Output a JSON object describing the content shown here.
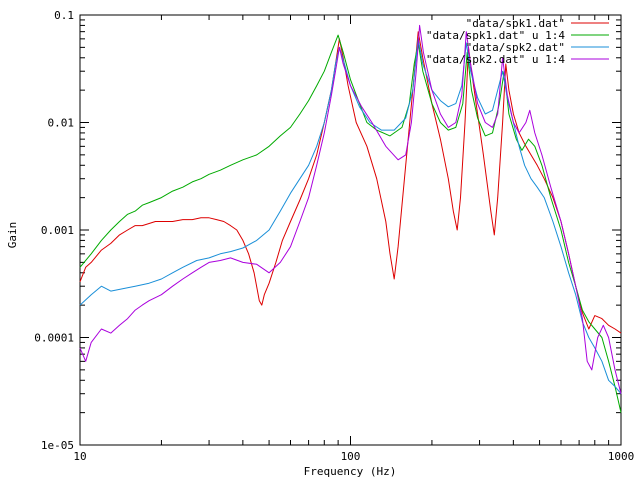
{
  "chart_data": {
    "type": "line",
    "title": "",
    "xlabel": "Frequency (Hz)",
    "ylabel": "Gain",
    "x_scale": "log",
    "y_scale": "log",
    "xlim": [
      10,
      1000
    ],
    "ylim": [
      1e-05,
      0.1
    ],
    "x_ticks": [
      {
        "value": 10,
        "label": "10"
      },
      {
        "value": 100,
        "label": "100"
      },
      {
        "value": 1000,
        "label": "1000"
      }
    ],
    "y_ticks": [
      {
        "value": 0.1,
        "label": "0.1"
      },
      {
        "value": 0.01,
        "label": "0.01"
      },
      {
        "value": 0.001,
        "label": "0.001"
      },
      {
        "value": 0.0001,
        "label": "0.0001"
      },
      {
        "value": 1e-05,
        "label": "1e-05"
      }
    ],
    "grid": false,
    "legend_position": "top-right",
    "series": [
      {
        "name": "\"data/spk1.dat\"",
        "color": "#dd0000",
        "points": [
          [
            10,
            0.00033
          ],
          [
            10.5,
            0.00045
          ],
          [
            11,
            0.0005
          ],
          [
            12,
            0.00065
          ],
          [
            13,
            0.00075
          ],
          [
            14,
            0.0009
          ],
          [
            15,
            0.001
          ],
          [
            16,
            0.0011
          ],
          [
            17,
            0.0011
          ],
          [
            18,
            0.00115
          ],
          [
            19,
            0.0012
          ],
          [
            20,
            0.0012
          ],
          [
            22,
            0.0012
          ],
          [
            24,
            0.00125
          ],
          [
            26,
            0.00125
          ],
          [
            28,
            0.0013
          ],
          [
            30,
            0.0013
          ],
          [
            32,
            0.00125
          ],
          [
            34,
            0.0012
          ],
          [
            36,
            0.0011
          ],
          [
            38,
            0.001
          ],
          [
            40,
            0.0008
          ],
          [
            42,
            0.0006
          ],
          [
            44,
            0.0004
          ],
          [
            46,
            0.00022
          ],
          [
            47,
            0.0002
          ],
          [
            48,
            0.00025
          ],
          [
            50,
            0.00032
          ],
          [
            53,
            0.0005
          ],
          [
            56,
            0.0008
          ],
          [
            60,
            0.0012
          ],
          [
            65,
            0.0019
          ],
          [
            70,
            0.003
          ],
          [
            75,
            0.005
          ],
          [
            80,
            0.01
          ],
          [
            85,
            0.02
          ],
          [
            88,
            0.035
          ],
          [
            91,
            0.06
          ],
          [
            94,
            0.04
          ],
          [
            98,
            0.022
          ],
          [
            105,
            0.01
          ],
          [
            115,
            0.006
          ],
          [
            125,
            0.003
          ],
          [
            135,
            0.0012
          ],
          [
            140,
            0.0006
          ],
          [
            145,
            0.00035
          ],
          [
            150,
            0.0007
          ],
          [
            160,
            0.004
          ],
          [
            170,
            0.02
          ],
          [
            178,
            0.07
          ],
          [
            185,
            0.04
          ],
          [
            200,
            0.015
          ],
          [
            215,
            0.007
          ],
          [
            230,
            0.003
          ],
          [
            240,
            0.0015
          ],
          [
            248,
            0.001
          ],
          [
            255,
            0.002
          ],
          [
            265,
            0.01
          ],
          [
            273,
            0.05
          ],
          [
            280,
            0.03
          ],
          [
            295,
            0.012
          ],
          [
            310,
            0.005
          ],
          [
            330,
            0.0015
          ],
          [
            340,
            0.0009
          ],
          [
            350,
            0.002
          ],
          [
            365,
            0.01
          ],
          [
            375,
            0.035
          ],
          [
            385,
            0.02
          ],
          [
            400,
            0.012
          ],
          [
            420,
            0.008
          ],
          [
            445,
            0.006
          ],
          [
            465,
            0.005
          ],
          [
            490,
            0.004
          ],
          [
            520,
            0.003
          ],
          [
            560,
            0.002
          ],
          [
            600,
            0.0012
          ],
          [
            640,
            0.0006
          ],
          [
            680,
            0.0003
          ],
          [
            720,
            0.00017
          ],
          [
            760,
            0.00012
          ],
          [
            800,
            0.00016
          ],
          [
            850,
            0.00015
          ],
          [
            900,
            0.00013
          ],
          [
            950,
            0.00012
          ],
          [
            1000,
            0.00011
          ]
        ]
      },
      {
        "name": "\"data/spk1.dat\" u 1:4",
        "color": "#00aa00",
        "points": [
          [
            10,
            0.00045
          ],
          [
            11,
            0.0006
          ],
          [
            12,
            0.0008
          ],
          [
            13,
            0.001
          ],
          [
            14,
            0.0012
          ],
          [
            15,
            0.0014
          ],
          [
            16,
            0.0015
          ],
          [
            17,
            0.0017
          ],
          [
            18,
            0.0018
          ],
          [
            20,
            0.002
          ],
          [
            22,
            0.0023
          ],
          [
            24,
            0.0025
          ],
          [
            26,
            0.0028
          ],
          [
            28,
            0.003
          ],
          [
            30,
            0.0033
          ],
          [
            33,
            0.0036
          ],
          [
            36,
            0.004
          ],
          [
            40,
            0.0045
          ],
          [
            45,
            0.005
          ],
          [
            50,
            0.006
          ],
          [
            55,
            0.0075
          ],
          [
            60,
            0.009
          ],
          [
            65,
            0.012
          ],
          [
            70,
            0.016
          ],
          [
            75,
            0.022
          ],
          [
            80,
            0.03
          ],
          [
            85,
            0.045
          ],
          [
            90,
            0.065
          ],
          [
            94,
            0.045
          ],
          [
            100,
            0.025
          ],
          [
            108,
            0.015
          ],
          [
            115,
            0.01
          ],
          [
            125,
            0.0085
          ],
          [
            140,
            0.0075
          ],
          [
            155,
            0.009
          ],
          [
            165,
            0.015
          ],
          [
            172,
            0.035
          ],
          [
            178,
            0.055
          ],
          [
            185,
            0.03
          ],
          [
            200,
            0.015
          ],
          [
            215,
            0.01
          ],
          [
            230,
            0.0085
          ],
          [
            245,
            0.009
          ],
          [
            260,
            0.015
          ],
          [
            270,
            0.045
          ],
          [
            280,
            0.02
          ],
          [
            295,
            0.011
          ],
          [
            315,
            0.0075
          ],
          [
            335,
            0.008
          ],
          [
            355,
            0.015
          ],
          [
            370,
            0.03
          ],
          [
            385,
            0.012
          ],
          [
            410,
            0.007
          ],
          [
            430,
            0.0055
          ],
          [
            455,
            0.007
          ],
          [
            480,
            0.006
          ],
          [
            510,
            0.004
          ],
          [
            550,
            0.002
          ],
          [
            600,
            0.001
          ],
          [
            640,
            0.0005
          ],
          [
            680,
            0.0003
          ],
          [
            720,
            0.00018
          ],
          [
            760,
            0.00014
          ],
          [
            800,
            0.00012
          ],
          [
            850,
            0.0001
          ],
          [
            900,
            6e-05
          ],
          [
            950,
            3.5e-05
          ],
          [
            1000,
            2e-05
          ]
        ]
      },
      {
        "name": "\"data/spk2.dat\"",
        "color": "#1a8fd8",
        "points": [
          [
            10,
            0.0002
          ],
          [
            11,
            0.00025
          ],
          [
            12,
            0.0003
          ],
          [
            13,
            0.00027
          ],
          [
            14,
            0.00028
          ],
          [
            15,
            0.00029
          ],
          [
            16,
            0.0003
          ],
          [
            18,
            0.00032
          ],
          [
            20,
            0.00035
          ],
          [
            22,
            0.0004
          ],
          [
            24,
            0.00045
          ],
          [
            27,
            0.00052
          ],
          [
            30,
            0.00055
          ],
          [
            33,
            0.0006
          ],
          [
            36,
            0.00063
          ],
          [
            40,
            0.00068
          ],
          [
            45,
            0.0008
          ],
          [
            50,
            0.001
          ],
          [
            55,
            0.0015
          ],
          [
            60,
            0.0022
          ],
          [
            65,
            0.003
          ],
          [
            70,
            0.004
          ],
          [
            75,
            0.006
          ],
          [
            80,
            0.01
          ],
          [
            85,
            0.02
          ],
          [
            88,
            0.035
          ],
          [
            91,
            0.05
          ],
          [
            95,
            0.035
          ],
          [
            100,
            0.022
          ],
          [
            108,
            0.014
          ],
          [
            118,
            0.01
          ],
          [
            130,
            0.0085
          ],
          [
            145,
            0.0085
          ],
          [
            160,
            0.011
          ],
          [
            170,
            0.02
          ],
          [
            178,
            0.06
          ],
          [
            185,
            0.035
          ],
          [
            200,
            0.02
          ],
          [
            215,
            0.016
          ],
          [
            230,
            0.014
          ],
          [
            245,
            0.015
          ],
          [
            258,
            0.022
          ],
          [
            268,
            0.055
          ],
          [
            278,
            0.03
          ],
          [
            295,
            0.017
          ],
          [
            315,
            0.012
          ],
          [
            335,
            0.013
          ],
          [
            350,
            0.02
          ],
          [
            365,
            0.03
          ],
          [
            380,
            0.017
          ],
          [
            400,
            0.01
          ],
          [
            420,
            0.006
          ],
          [
            440,
            0.004
          ],
          [
            465,
            0.003
          ],
          [
            490,
            0.0025
          ],
          [
            520,
            0.002
          ],
          [
            560,
            0.0012
          ],
          [
            600,
            0.0007
          ],
          [
            640,
            0.0004
          ],
          [
            680,
            0.00025
          ],
          [
            720,
            0.00014
          ],
          [
            760,
            0.0001
          ],
          [
            800,
            8e-05
          ],
          [
            850,
            6e-05
          ],
          [
            900,
            4e-05
          ],
          [
            950,
            3.5e-05
          ],
          [
            1000,
            3e-05
          ]
        ]
      },
      {
        "name": "\"data/spk2.dat\" u 1:4",
        "color": "#aa00dd",
        "points": [
          [
            10,
            8e-05
          ],
          [
            10.5,
            6e-05
          ],
          [
            11,
            9e-05
          ],
          [
            12,
            0.00012
          ],
          [
            13,
            0.00011
          ],
          [
            14,
            0.00013
          ],
          [
            15,
            0.00015
          ],
          [
            16,
            0.00018
          ],
          [
            17,
            0.0002
          ],
          [
            18,
            0.00022
          ],
          [
            20,
            0.00025
          ],
          [
            22,
            0.0003
          ],
          [
            24,
            0.00035
          ],
          [
            26,
            0.0004
          ],
          [
            28,
            0.00045
          ],
          [
            30,
            0.0005
          ],
          [
            33,
            0.00052
          ],
          [
            36,
            0.00055
          ],
          [
            40,
            0.0005
          ],
          [
            45,
            0.00048
          ],
          [
            50,
            0.0004
          ],
          [
            55,
            0.0005
          ],
          [
            60,
            0.0007
          ],
          [
            65,
            0.0012
          ],
          [
            70,
            0.002
          ],
          [
            75,
            0.004
          ],
          [
            80,
            0.008
          ],
          [
            85,
            0.018
          ],
          [
            88,
            0.03
          ],
          [
            91,
            0.05
          ],
          [
            94,
            0.035
          ],
          [
            100,
            0.022
          ],
          [
            110,
            0.014
          ],
          [
            120,
            0.01
          ],
          [
            135,
            0.006
          ],
          [
            150,
            0.0045
          ],
          [
            160,
            0.005
          ],
          [
            168,
            0.01
          ],
          [
            175,
            0.03
          ],
          [
            180,
            0.08
          ],
          [
            186,
            0.045
          ],
          [
            200,
            0.02
          ],
          [
            215,
            0.012
          ],
          [
            230,
            0.009
          ],
          [
            245,
            0.01
          ],
          [
            258,
            0.018
          ],
          [
            268,
            0.07
          ],
          [
            278,
            0.035
          ],
          [
            295,
            0.015
          ],
          [
            315,
            0.01
          ],
          [
            335,
            0.009
          ],
          [
            350,
            0.012
          ],
          [
            365,
            0.04
          ],
          [
            380,
            0.018
          ],
          [
            400,
            0.01
          ],
          [
            420,
            0.008
          ],
          [
            445,
            0.01
          ],
          [
            460,
            0.013
          ],
          [
            480,
            0.008
          ],
          [
            510,
            0.005
          ],
          [
            550,
            0.0025
          ],
          [
            600,
            0.0012
          ],
          [
            640,
            0.0006
          ],
          [
            680,
            0.0003
          ],
          [
            720,
            0.00015
          ],
          [
            750,
            6e-05
          ],
          [
            780,
            5e-05
          ],
          [
            820,
            0.0001
          ],
          [
            860,
            0.00013
          ],
          [
            900,
            0.0001
          ],
          [
            950,
            5e-05
          ],
          [
            1000,
            3e-05
          ]
        ]
      }
    ]
  }
}
